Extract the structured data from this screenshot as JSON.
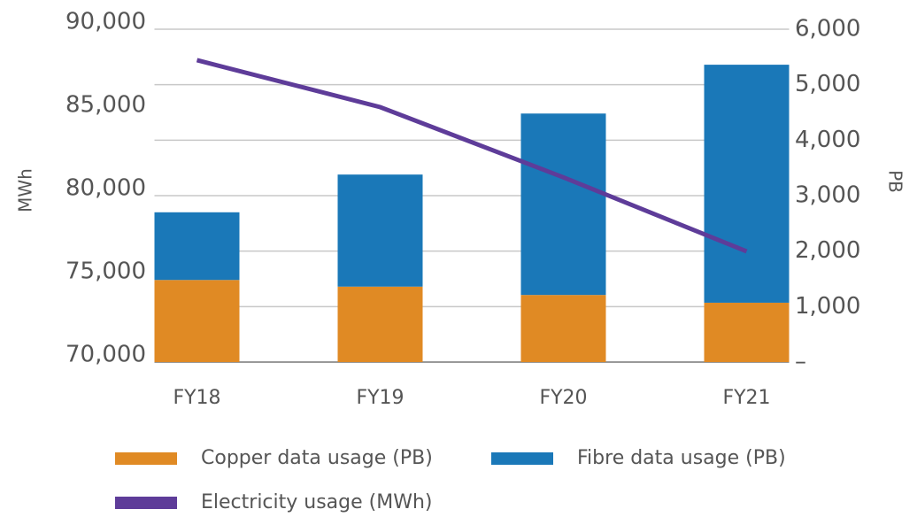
{
  "chart_data": {
    "type": "bar",
    "categories": [
      "FY18",
      "FY19",
      "FY20",
      "FY21"
    ],
    "series": [
      {
        "name": "Copper data usage (PB)",
        "color": "#e08a24",
        "values": [
          1480,
          1360,
          1210,
          1070
        ],
        "axis": "y2",
        "type": "bar"
      },
      {
        "name": "Fibre data usage (PB)",
        "color": "#1a78b8",
        "values": [
          1220,
          2020,
          3270,
          4290
        ],
        "axis": "y2",
        "type": "bar"
      },
      {
        "name": "Electricity usage (MWh)",
        "color": "#5e3c99",
        "values": [
          88140,
          85320,
          81100,
          76650
        ],
        "type": "line"
      }
    ],
    "ylabel": "MWh",
    "y2label": "PB",
    "ylim": [
      70000,
      90000
    ],
    "yticks": [
      {
        "value": 70000,
        "label": "70,000"
      },
      {
        "value": 75000,
        "label": "75,000"
      },
      {
        "value": 80000,
        "label": "80,000"
      },
      {
        "value": 85000,
        "label": "85,000"
      },
      {
        "value": 90000,
        "label": "90,000"
      }
    ],
    "y2lim": [
      0,
      6000
    ],
    "y2ticks": [
      {
        "value": 0,
        "label": "–"
      },
      {
        "value": 1000,
        "label": "1,000"
      },
      {
        "value": 2000,
        "label": "2,000"
      },
      {
        "value": 3000,
        "label": "3,000"
      },
      {
        "value": 4000,
        "label": "4,000"
      },
      {
        "value": 5000,
        "label": "5,000"
      },
      {
        "value": 6000,
        "label": "6,000"
      }
    ],
    "grid": true
  }
}
